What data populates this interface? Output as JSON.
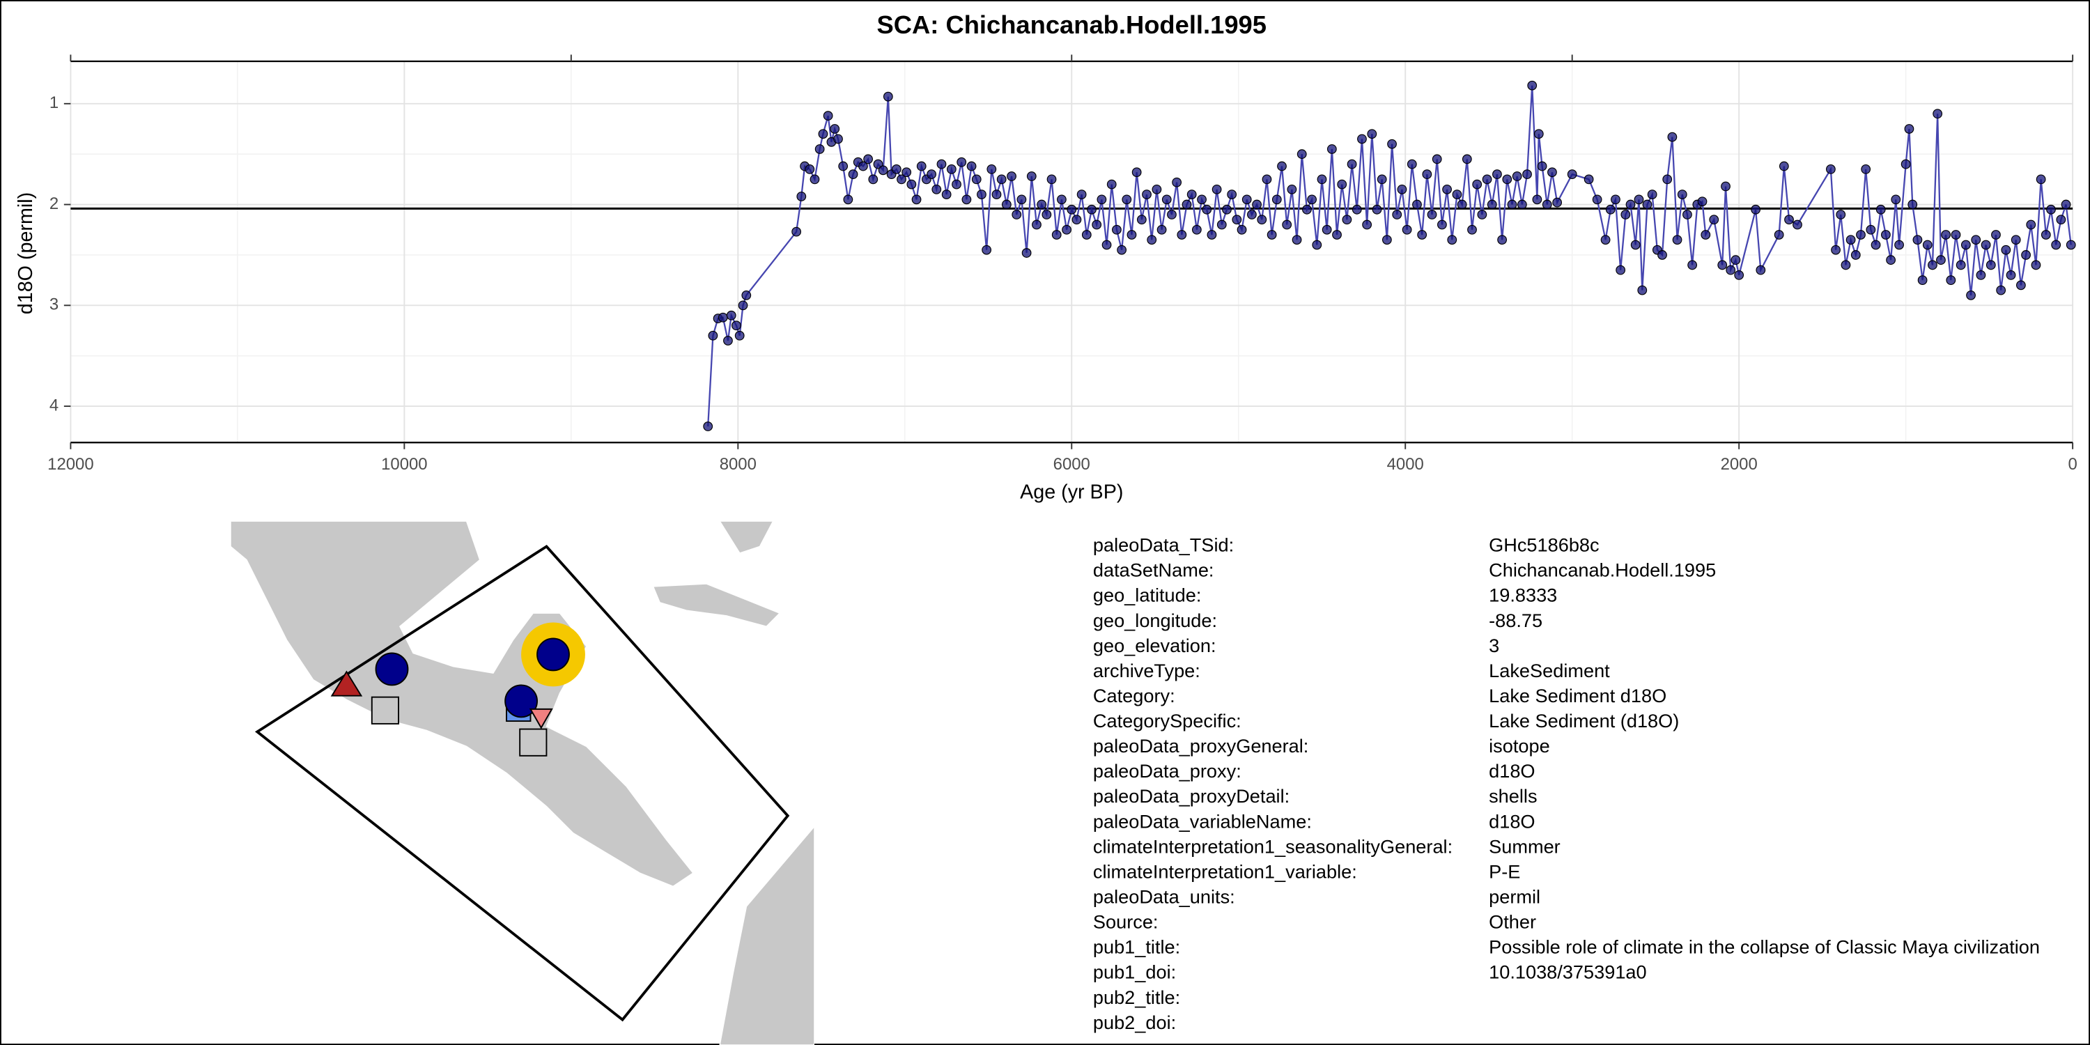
{
  "chart_data": {
    "type": "line",
    "title": "SCA: Chichancanab.Hodell.1995",
    "xlabel": "Age (yr BP)",
    "ylabel": "d18O (permil)",
    "xlim": [
      12000,
      0
    ],
    "ylim": [
      4.36,
      0.58
    ],
    "xticks": [
      12000,
      10000,
      8000,
      6000,
      4000,
      2000,
      0
    ],
    "xticks_minor": [
      11000,
      9000,
      7000,
      5000,
      3000,
      1000
    ],
    "x2ticks": [
      12000,
      9000,
      6000,
      3000,
      0
    ],
    "yticks": [
      1,
      2,
      3,
      4
    ],
    "yticks_minor": [
      1.5,
      2.5,
      3.5
    ],
    "grid": true,
    "hline": 2.04,
    "color": "#4646b0",
    "marker_color": "#14147a",
    "x": [
      8180,
      8150,
      8120,
      8090,
      8060,
      8040,
      8010,
      7990,
      7970,
      7950,
      7650,
      7620,
      7600,
      7570,
      7540,
      7510,
      7490,
      7460,
      7440,
      7420,
      7400,
      7370,
      7340,
      7310,
      7280,
      7250,
      7220,
      7190,
      7160,
      7130,
      7100,
      7080,
      7050,
      7020,
      6990,
      6960,
      6930,
      6900,
      6870,
      6840,
      6810,
      6780,
      6750,
      6720,
      6690,
      6660,
      6630,
      6600,
      6570,
      6540,
      6510,
      6480,
      6450,
      6420,
      6390,
      6360,
      6330,
      6300,
      6270,
      6240,
      6210,
      6180,
      6150,
      6120,
      6090,
      6060,
      6030,
      6000,
      5970,
      5940,
      5910,
      5880,
      5850,
      5820,
      5790,
      5760,
      5730,
      5700,
      5670,
      5640,
      5610,
      5580,
      5550,
      5520,
      5490,
      5460,
      5430,
      5400,
      5370,
      5340,
      5310,
      5280,
      5250,
      5220,
      5190,
      5160,
      5130,
      5100,
      5070,
      5040,
      5010,
      4980,
      4950,
      4920,
      4890,
      4860,
      4830,
      4800,
      4770,
      4740,
      4710,
      4680,
      4650,
      4620,
      4590,
      4560,
      4530,
      4500,
      4470,
      4440,
      4410,
      4380,
      4350,
      4320,
      4290,
      4260,
      4230,
      4200,
      4170,
      4140,
      4110,
      4080,
      4050,
      4020,
      3990,
      3960,
      3930,
      3900,
      3870,
      3840,
      3810,
      3780,
      3750,
      3720,
      3690,
      3660,
      3630,
      3600,
      3570,
      3540,
      3510,
      3480,
      3450,
      3420,
      3390,
      3360,
      3330,
      3300,
      3270,
      3240,
      3210,
      3200,
      3180,
      3150,
      3120,
      3090,
      3000,
      2900,
      2850,
      2800,
      2770,
      2740,
      2710,
      2680,
      2650,
      2620,
      2600,
      2580,
      2550,
      2520,
      2490,
      2460,
      2430,
      2400,
      2370,
      2340,
      2310,
      2280,
      2250,
      2220,
      2200,
      2150,
      2100,
      2080,
      2050,
      2020,
      2000,
      1900,
      1870,
      1760,
      1730,
      1700,
      1650,
      1450,
      1420,
      1390,
      1360,
      1330,
      1300,
      1270,
      1240,
      1210,
      1180,
      1150,
      1120,
      1090,
      1060,
      1040,
      1000,
      980,
      960,
      930,
      900,
      870,
      840,
      810,
      790,
      760,
      730,
      700,
      670,
      640,
      610,
      580,
      550,
      520,
      490,
      460,
      430,
      400,
      370,
      340,
      310,
      280,
      250,
      220,
      190,
      160,
      130,
      100,
      70,
      40,
      10
    ],
    "values": [
      4.2,
      3.3,
      3.13,
      3.12,
      3.35,
      3.1,
      3.2,
      3.3,
      3.0,
      2.9,
      2.27,
      1.92,
      1.62,
      1.65,
      1.75,
      1.45,
      1.3,
      1.12,
      1.38,
      1.25,
      1.35,
      1.62,
      1.95,
      1.7,
      1.58,
      1.62,
      1.55,
      1.75,
      1.6,
      1.66,
      0.93,
      1.7,
      1.65,
      1.75,
      1.68,
      1.8,
      1.95,
      1.62,
      1.75,
      1.7,
      1.85,
      1.6,
      1.9,
      1.65,
      1.8,
      1.58,
      1.95,
      1.62,
      1.75,
      1.9,
      2.45,
      1.65,
      1.9,
      1.75,
      2.0,
      1.72,
      2.1,
      1.95,
      2.48,
      1.72,
      2.2,
      2.0,
      2.1,
      1.75,
      2.3,
      1.95,
      2.25,
      2.05,
      2.15,
      1.9,
      2.3,
      2.05,
      2.2,
      1.95,
      2.4,
      1.8,
      2.25,
      2.45,
      1.95,
      2.3,
      1.68,
      2.15,
      1.9,
      2.35,
      1.85,
      2.25,
      1.95,
      2.1,
      1.78,
      2.3,
      2.0,
      1.9,
      2.25,
      1.95,
      2.05,
      2.3,
      1.85,
      2.2,
      2.05,
      1.9,
      2.15,
      2.25,
      1.95,
      2.1,
      2.0,
      2.15,
      1.75,
      2.3,
      1.95,
      1.62,
      2.2,
      1.85,
      2.35,
      1.5,
      2.05,
      1.95,
      2.4,
      1.75,
      2.25,
      1.45,
      2.3,
      1.8,
      2.15,
      1.6,
      2.05,
      1.35,
      2.2,
      1.3,
      2.05,
      1.75,
      2.35,
      1.4,
      2.1,
      1.85,
      2.25,
      1.6,
      2.0,
      2.3,
      1.7,
      2.1,
      1.55,
      2.2,
      1.85,
      2.35,
      1.9,
      2.0,
      1.55,
      2.25,
      1.8,
      2.1,
      1.75,
      2.0,
      1.7,
      2.35,
      1.75,
      2.0,
      1.72,
      2.0,
      1.7,
      0.82,
      1.95,
      1.3,
      1.62,
      2.0,
      1.68,
      1.98,
      1.7,
      1.75,
      1.95,
      2.35,
      2.05,
      1.95,
      2.65,
      2.1,
      2.0,
      2.4,
      1.95,
      2.85,
      2.0,
      1.9,
      2.45,
      2.5,
      1.75,
      1.33,
      2.35,
      1.9,
      2.1,
      2.6,
      2.0,
      1.97,
      2.3,
      2.15,
      2.6,
      1.82,
      2.65,
      2.55,
      2.7,
      2.05,
      2.65,
      2.3,
      1.62,
      2.15,
      2.2,
      1.65,
      2.45,
      2.1,
      2.6,
      2.35,
      2.5,
      2.3,
      1.65,
      2.25,
      2.4,
      2.05,
      2.3,
      2.55,
      1.95,
      2.4,
      1.6,
      1.25,
      2.0,
      2.35,
      2.75,
      2.4,
      2.6,
      1.1,
      2.55,
      2.3,
      2.75,
      2.3,
      2.6,
      2.4,
      2.9,
      2.35,
      2.7,
      2.4,
      2.6,
      2.3,
      2.85,
      2.45,
      2.7,
      2.35,
      2.8,
      2.5,
      2.2,
      2.6,
      1.75,
      2.3,
      2.05,
      2.4,
      2.15,
      2.0,
      2.4
    ]
  },
  "metadata": {
    "rows": [
      [
        "paleoData_TSid:",
        "GHc5186b8c"
      ],
      [
        "dataSetName:",
        "Chichancanab.Hodell.1995"
      ],
      [
        "geo_latitude:",
        "19.8333"
      ],
      [
        "geo_longitude:",
        "-88.75"
      ],
      [
        "geo_elevation:",
        "3"
      ],
      [
        "archiveType:",
        "LakeSediment"
      ],
      [
        "Category:",
        "Lake Sediment d18O"
      ],
      [
        "CategorySpecific:",
        "Lake Sediment (d18O)"
      ],
      [
        "paleoData_proxyGeneral:",
        "isotope"
      ],
      [
        "paleoData_proxy:",
        "d18O"
      ],
      [
        "paleoData_proxyDetail:",
        "shells"
      ],
      [
        "paleoData_variableName:",
        "d18O"
      ],
      [
        "climateInterpretation1_seasonalityGeneral:",
        "Summer"
      ],
      [
        "climateInterpretation1_variable:",
        "P-E"
      ],
      [
        "paleoData_units:",
        "permil"
      ],
      [
        "Source:",
        "Other"
      ],
      [
        "pub1_title:",
        "Possible role of climate in the collapse of Classic Maya civilization"
      ],
      [
        "pub1_doi:",
        "10.1038/375391a0"
      ],
      [
        "pub2_title:"
      ],
      [
        "pub2_doi:"
      ]
    ]
  }
}
